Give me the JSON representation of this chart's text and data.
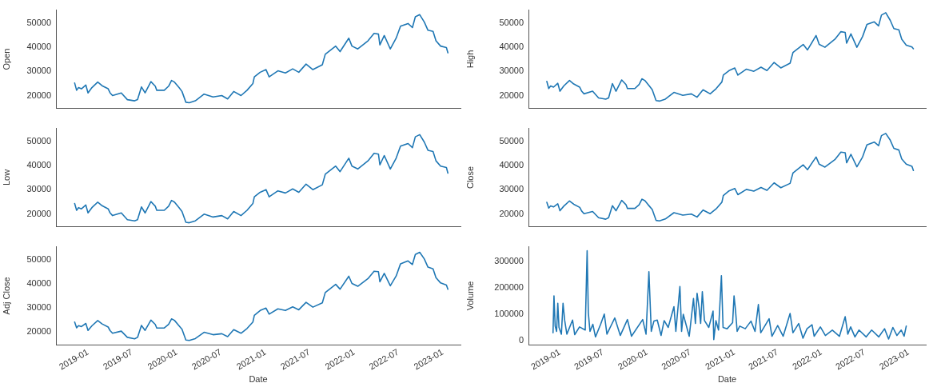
{
  "chart_data": [
    {
      "type": "line",
      "ylabel": "Open",
      "color": "#1f77b4",
      "grid": false,
      "legend": false,
      "tick_labels": "y",
      "xlim": [
        "2018-08-22",
        "2023-03-15"
      ],
      "xticks": [
        "2019-01",
        "2019-07",
        "2020-01",
        "2020-07",
        "2021-01",
        "2021-07",
        "2022-01",
        "2022-07",
        "2023-01"
      ],
      "ylim": [
        14700,
        55600
      ],
      "yticks": [
        20000,
        30000,
        40000,
        50000
      ],
      "x": [
        "2018-11-07",
        "2018-11-15",
        "2018-11-23",
        "2018-12-05",
        "2018-12-23",
        "2019-01-01",
        "2019-01-17",
        "2019-02-10",
        "2019-02-28",
        "2019-03-25",
        "2019-04-02",
        "2019-04-12",
        "2019-05-18",
        "2019-06-12",
        "2019-07-12",
        "2019-07-24",
        "2019-08-09",
        "2019-08-24",
        "2019-09-17",
        "2019-10-05",
        "2019-10-11",
        "2019-11-11",
        "2019-11-29",
        "2019-12-11",
        "2019-12-23",
        "2020-01-11",
        "2020-01-23",
        "2020-02-08",
        "2020-02-22",
        "2020-03-18",
        "2020-04-23",
        "2020-05-30",
        "2020-07-05",
        "2020-07-29",
        "2020-08-23",
        "2020-09-22",
        "2020-10-17",
        "2020-11-10",
        "2020-11-16",
        "2020-12-10",
        "2021-01-03",
        "2021-01-16",
        "2021-02-21",
        "2021-03-24",
        "2021-04-23",
        "2021-05-18",
        "2021-06-17",
        "2021-07-15",
        "2021-08-23",
        "2021-09-04",
        "2021-10-17",
        "2021-11-04",
        "2021-12-10",
        "2021-12-23",
        "2022-01-16",
        "2022-02-27",
        "2022-03-24",
        "2022-04-11",
        "2022-04-17",
        "2022-05-05",
        "2022-05-30",
        "2022-06-23",
        "2022-07-11",
        "2022-08-11",
        "2022-08-29",
        "2022-09-10",
        "2022-09-28",
        "2022-10-17",
        "2022-11-01",
        "2022-11-22",
        "2022-12-04",
        "2022-12-23",
        "2023-01-16",
        "2023-01-22"
      ],
      "values": [
        25200,
        22200,
        23300,
        22800,
        24400,
        21100,
        23300,
        25600,
        24100,
        22800,
        21100,
        20000,
        21100,
        18300,
        17800,
        18300,
        23600,
        21100,
        25800,
        23900,
        22200,
        22200,
        23900,
        26300,
        25600,
        23300,
        21700,
        17200,
        17000,
        17800,
        20600,
        19400,
        20000,
        18600,
        21700,
        20000,
        22200,
        25000,
        27800,
        29700,
        30800,
        27800,
        30300,
        29400,
        31100,
        29700,
        33100,
        30800,
        32800,
        37200,
        40600,
        38300,
        43900,
        40600,
        39400,
        42800,
        45900,
        45600,
        41100,
        45000,
        39400,
        43900,
        48900,
        50000,
        48300,
        52800,
        53700,
        50600,
        47200,
        46700,
        42800,
        40600,
        40000,
        37800
      ]
    },
    {
      "type": "line",
      "ylabel": "High",
      "color": "#1f77b4",
      "grid": false,
      "legend": false,
      "tick_labels": "y",
      "xlim": [
        "2018-08-22",
        "2023-03-15"
      ],
      "xticks": [
        "2019-01",
        "2019-07",
        "2020-01",
        "2020-07",
        "2021-01",
        "2021-07",
        "2022-01",
        "2022-07",
        "2023-01"
      ],
      "ylim": [
        14700,
        55600
      ],
      "yticks": [
        20000,
        30000,
        40000,
        50000
      ],
      "x": [
        "2018-11-07",
        "2018-11-15",
        "2018-11-23",
        "2018-12-05",
        "2018-12-23",
        "2019-01-01",
        "2019-01-17",
        "2019-02-10",
        "2019-02-28",
        "2019-03-25",
        "2019-04-02",
        "2019-04-12",
        "2019-05-18",
        "2019-06-12",
        "2019-07-12",
        "2019-07-24",
        "2019-08-09",
        "2019-08-24",
        "2019-09-17",
        "2019-10-05",
        "2019-10-11",
        "2019-11-11",
        "2019-11-29",
        "2019-12-11",
        "2019-12-23",
        "2020-01-11",
        "2020-01-23",
        "2020-02-08",
        "2020-02-22",
        "2020-03-18",
        "2020-04-23",
        "2020-05-30",
        "2020-07-05",
        "2020-07-29",
        "2020-08-23",
        "2020-09-22",
        "2020-10-17",
        "2020-11-10",
        "2020-11-16",
        "2020-12-10",
        "2021-01-03",
        "2021-01-16",
        "2021-02-21",
        "2021-03-24",
        "2021-04-23",
        "2021-05-18",
        "2021-06-17",
        "2021-07-15",
        "2021-08-23",
        "2021-09-04",
        "2021-10-17",
        "2021-11-04",
        "2021-12-10",
        "2021-12-23",
        "2022-01-16",
        "2022-02-27",
        "2022-03-24",
        "2022-04-11",
        "2022-04-17",
        "2022-05-05",
        "2022-05-30",
        "2022-06-23",
        "2022-07-11",
        "2022-08-11",
        "2022-08-29",
        "2022-09-10",
        "2022-09-28",
        "2022-10-17",
        "2022-11-01",
        "2022-11-22",
        "2022-12-04",
        "2022-12-23",
        "2023-01-16",
        "2023-01-22"
      ],
      "values": [
        25900,
        22900,
        24000,
        23500,
        25100,
        21800,
        24000,
        26300,
        24800,
        23500,
        21800,
        20700,
        21800,
        19000,
        18500,
        19000,
        25000,
        21800,
        26500,
        24600,
        22900,
        22900,
        24600,
        27000,
        26300,
        24000,
        22400,
        17900,
        17700,
        18500,
        21300,
        20100,
        20700,
        19300,
        22400,
        20700,
        22900,
        25700,
        28500,
        30400,
        31500,
        28500,
        31000,
        30100,
        31800,
        30400,
        33800,
        31500,
        33500,
        37900,
        41300,
        39000,
        45000,
        41300,
        40100,
        43500,
        46600,
        46300,
        41800,
        45700,
        40100,
        44600,
        49600,
        50700,
        49000,
        53500,
        54500,
        51300,
        47900,
        47400,
        43500,
        41000,
        40200,
        39500
      ]
    },
    {
      "type": "line",
      "ylabel": "Low",
      "color": "#1f77b4",
      "grid": false,
      "legend": false,
      "tick_labels": "y",
      "xlim": [
        "2018-08-22",
        "2023-03-15"
      ],
      "xticks": [
        "2019-01",
        "2019-07",
        "2020-01",
        "2020-07",
        "2021-01",
        "2021-07",
        "2022-01",
        "2022-07",
        "2023-01"
      ],
      "ylim": [
        14700,
        55600
      ],
      "yticks": [
        20000,
        30000,
        40000,
        50000
      ],
      "x": [
        "2018-11-07",
        "2018-11-15",
        "2018-11-23",
        "2018-12-05",
        "2018-12-23",
        "2019-01-01",
        "2019-01-17",
        "2019-02-10",
        "2019-02-28",
        "2019-03-25",
        "2019-04-02",
        "2019-04-12",
        "2019-05-18",
        "2019-06-12",
        "2019-07-12",
        "2019-07-24",
        "2019-08-09",
        "2019-08-24",
        "2019-09-17",
        "2019-10-05",
        "2019-10-11",
        "2019-11-11",
        "2019-11-29",
        "2019-12-11",
        "2019-12-23",
        "2020-01-11",
        "2020-01-23",
        "2020-02-08",
        "2020-02-22",
        "2020-03-18",
        "2020-04-23",
        "2020-05-30",
        "2020-07-05",
        "2020-07-29",
        "2020-08-23",
        "2020-09-22",
        "2020-10-17",
        "2020-11-10",
        "2020-11-16",
        "2020-12-10",
        "2021-01-03",
        "2021-01-16",
        "2021-02-21",
        "2021-03-24",
        "2021-04-23",
        "2021-05-18",
        "2021-06-17",
        "2021-07-15",
        "2021-08-23",
        "2021-09-04",
        "2021-10-17",
        "2021-11-04",
        "2021-12-10",
        "2021-12-23",
        "2022-01-16",
        "2022-02-27",
        "2022-03-24",
        "2022-04-11",
        "2022-04-17",
        "2022-05-05",
        "2022-05-30",
        "2022-06-23",
        "2022-07-11",
        "2022-08-11",
        "2022-08-29",
        "2022-09-10",
        "2022-09-28",
        "2022-10-17",
        "2022-11-01",
        "2022-11-22",
        "2022-12-04",
        "2022-12-23",
        "2023-01-16",
        "2023-01-22"
      ],
      "values": [
        24300,
        21500,
        22600,
        22100,
        23700,
        20400,
        22600,
        24900,
        23400,
        22100,
        20400,
        19300,
        20400,
        17600,
        17100,
        17600,
        22900,
        20400,
        25100,
        23200,
        21500,
        21500,
        23200,
        25600,
        24900,
        22600,
        21000,
        16500,
        16300,
        17100,
        19900,
        18700,
        19300,
        17900,
        21000,
        19300,
        21500,
        24300,
        27100,
        29000,
        30100,
        27100,
        29600,
        28700,
        30400,
        29000,
        32400,
        30100,
        32100,
        36500,
        39900,
        37600,
        43200,
        39900,
        38700,
        42100,
        45200,
        44900,
        40400,
        44300,
        38700,
        43200,
        48200,
        49300,
        47600,
        52100,
        53000,
        49900,
        46500,
        46000,
        42100,
        39900,
        39300,
        37000
      ]
    },
    {
      "type": "line",
      "ylabel": "Close",
      "color": "#1f77b4",
      "grid": false,
      "legend": false,
      "tick_labels": "y",
      "xlim": [
        "2018-08-22",
        "2023-03-15"
      ],
      "xticks": [
        "2019-01",
        "2019-07",
        "2020-01",
        "2020-07",
        "2021-01",
        "2021-07",
        "2022-01",
        "2022-07",
        "2023-01"
      ],
      "ylim": [
        14700,
        55600
      ],
      "yticks": [
        20000,
        30000,
        40000,
        50000
      ],
      "x": [
        "2018-11-07",
        "2018-11-15",
        "2018-11-23",
        "2018-12-05",
        "2018-12-23",
        "2019-01-01",
        "2019-01-17",
        "2019-02-10",
        "2019-02-28",
        "2019-03-25",
        "2019-04-02",
        "2019-04-12",
        "2019-05-18",
        "2019-06-12",
        "2019-07-12",
        "2019-07-24",
        "2019-08-09",
        "2019-08-24",
        "2019-09-17",
        "2019-10-05",
        "2019-10-11",
        "2019-11-11",
        "2019-11-29",
        "2019-12-11",
        "2019-12-23",
        "2020-01-11",
        "2020-01-23",
        "2020-02-08",
        "2020-02-22",
        "2020-03-18",
        "2020-04-23",
        "2020-05-30",
        "2020-07-05",
        "2020-07-29",
        "2020-08-23",
        "2020-09-22",
        "2020-10-17",
        "2020-11-10",
        "2020-11-16",
        "2020-12-10",
        "2021-01-03",
        "2021-01-16",
        "2021-02-21",
        "2021-03-24",
        "2021-04-23",
        "2021-05-18",
        "2021-06-17",
        "2021-07-15",
        "2021-08-23",
        "2021-09-04",
        "2021-10-17",
        "2021-11-04",
        "2021-12-10",
        "2021-12-23",
        "2022-01-16",
        "2022-02-27",
        "2022-03-24",
        "2022-04-11",
        "2022-04-17",
        "2022-05-05",
        "2022-05-30",
        "2022-06-23",
        "2022-07-11",
        "2022-08-11",
        "2022-08-29",
        "2022-09-10",
        "2022-09-28",
        "2022-10-17",
        "2022-11-01",
        "2022-11-22",
        "2022-12-04",
        "2022-12-23",
        "2023-01-16",
        "2023-01-22"
      ],
      "values": [
        24800,
        22400,
        23300,
        22900,
        24200,
        21300,
        23200,
        25400,
        24000,
        22700,
        21200,
        20100,
        21000,
        18400,
        17800,
        18400,
        23400,
        21300,
        25600,
        23800,
        22300,
        22300,
        23800,
        26100,
        25500,
        23200,
        21800,
        17300,
        17100,
        17900,
        20500,
        19500,
        19900,
        18700,
        21600,
        20100,
        22100,
        24800,
        27600,
        29600,
        30600,
        28000,
        30200,
        29500,
        31000,
        29800,
        32900,
        30900,
        32700,
        37000,
        40400,
        38400,
        43700,
        40700,
        39500,
        42600,
        45700,
        45500,
        41300,
        44800,
        39600,
        43700,
        48700,
        49900,
        48400,
        52600,
        53500,
        50700,
        47300,
        46600,
        42900,
        40700,
        39800,
        38100
      ]
    },
    {
      "type": "line",
      "ylabel": "Adj Close",
      "xlabel": "Date",
      "color": "#1f77b4",
      "grid": false,
      "legend": false,
      "xlim": [
        "2018-08-22",
        "2023-03-15"
      ],
      "xticks": [
        "2019-01",
        "2019-07",
        "2020-01",
        "2020-07",
        "2021-01",
        "2021-07",
        "2022-01",
        "2022-07",
        "2023-01"
      ],
      "ylim": [
        14700,
        55600
      ],
      "yticks": [
        20000,
        30000,
        40000,
        50000
      ],
      "x": [
        "2018-11-07",
        "2018-11-15",
        "2018-11-23",
        "2018-12-05",
        "2018-12-23",
        "2019-01-01",
        "2019-01-17",
        "2019-02-10",
        "2019-02-28",
        "2019-03-25",
        "2019-04-02",
        "2019-04-12",
        "2019-05-18",
        "2019-06-12",
        "2019-07-12",
        "2019-07-24",
        "2019-08-09",
        "2019-08-24",
        "2019-09-17",
        "2019-10-05",
        "2019-10-11",
        "2019-11-11",
        "2019-11-29",
        "2019-12-11",
        "2019-12-23",
        "2020-01-11",
        "2020-01-23",
        "2020-02-08",
        "2020-02-22",
        "2020-03-18",
        "2020-04-23",
        "2020-05-30",
        "2020-07-05",
        "2020-07-29",
        "2020-08-23",
        "2020-09-22",
        "2020-10-17",
        "2020-11-10",
        "2020-11-16",
        "2020-12-10",
        "2021-01-03",
        "2021-01-16",
        "2021-02-21",
        "2021-03-24",
        "2021-04-23",
        "2021-05-18",
        "2021-06-17",
        "2021-07-15",
        "2021-08-23",
        "2021-09-04",
        "2021-10-17",
        "2021-11-04",
        "2021-12-10",
        "2021-12-23",
        "2022-01-16",
        "2022-02-27",
        "2022-03-24",
        "2022-04-11",
        "2022-04-17",
        "2022-05-05",
        "2022-05-30",
        "2022-06-23",
        "2022-07-11",
        "2022-08-11",
        "2022-08-29",
        "2022-09-10",
        "2022-09-28",
        "2022-10-17",
        "2022-11-01",
        "2022-11-22",
        "2022-12-04",
        "2022-12-23",
        "2023-01-16",
        "2023-01-22"
      ],
      "values": [
        24200,
        21800,
        22700,
        22300,
        23600,
        20700,
        22600,
        24800,
        23400,
        22100,
        20600,
        19500,
        20400,
        17800,
        17200,
        17800,
        22800,
        20700,
        25000,
        23200,
        21700,
        21700,
        23200,
        25500,
        24900,
        22600,
        21200,
        16700,
        16500,
        17300,
        19900,
        18900,
        19300,
        18100,
        21000,
        19500,
        21500,
        24200,
        27000,
        29000,
        30000,
        27500,
        29700,
        29000,
        30500,
        29300,
        32400,
        30400,
        32200,
        36500,
        39900,
        37900,
        43300,
        40300,
        39100,
        42300,
        45400,
        45200,
        41000,
        44500,
        39300,
        43400,
        48500,
        49700,
        48200,
        52400,
        53300,
        50500,
        47100,
        46400,
        42700,
        40500,
        39600,
        37900
      ]
    },
    {
      "type": "line",
      "ylabel": "Volume",
      "xlabel": "Date",
      "color": "#1f77b4",
      "grid": false,
      "legend": false,
      "xlim": [
        "2018-08-22",
        "2023-03-15"
      ],
      "xticks": [
        "2019-01",
        "2019-07",
        "2020-01",
        "2020-07",
        "2021-01",
        "2021-07",
        "2022-01",
        "2022-07",
        "2023-01"
      ],
      "ylim": [
        -17000,
        356000
      ],
      "yticks": [
        0,
        100000,
        200000,
        300000
      ],
      "x": [
        "2018-12-03",
        "2018-12-07",
        "2018-12-12",
        "2018-12-18",
        "2018-12-23",
        "2018-12-28",
        "2019-01-07",
        "2019-01-14",
        "2019-01-21",
        "2019-01-30",
        "2019-02-23",
        "2019-03-04",
        "2019-03-24",
        "2019-04-17",
        "2019-04-25",
        "2019-04-30",
        "2019-05-07",
        "2019-05-19",
        "2019-05-30",
        "2019-06-21",
        "2019-07-06",
        "2019-07-17",
        "2019-08-19",
        "2019-09-11",
        "2019-10-11",
        "2019-10-28",
        "2019-12-14",
        "2019-12-28",
        "2020-01-09",
        "2020-01-19",
        "2020-01-30",
        "2020-02-13",
        "2020-02-29",
        "2020-03-13",
        "2020-03-30",
        "2020-04-23",
        "2020-05-01",
        "2020-05-18",
        "2020-05-25",
        "2020-06-01",
        "2020-06-26",
        "2020-07-14",
        "2020-07-22",
        "2020-07-29",
        "2020-08-06",
        "2020-08-13",
        "2020-08-20",
        "2020-08-29",
        "2020-09-16",
        "2020-10-04",
        "2020-10-07",
        "2020-10-16",
        "2020-10-27",
        "2020-11-08",
        "2020-11-15",
        "2020-12-02",
        "2020-12-25",
        "2020-12-31",
        "2021-01-06",
        "2021-01-13",
        "2021-01-24",
        "2021-02-16",
        "2021-03-12",
        "2021-03-29",
        "2021-04-12",
        "2021-04-22",
        "2021-05-27",
        "2021-06-08",
        "2021-07-02",
        "2021-07-25",
        "2021-08-23",
        "2021-09-04",
        "2021-09-28",
        "2021-10-16",
        "2021-11-02",
        "2021-11-23",
        "2021-12-02",
        "2021-12-28",
        "2022-01-18",
        "2022-02-16",
        "2022-03-18",
        "2022-04-11",
        "2022-04-22",
        "2022-05-04",
        "2022-05-22",
        "2022-06-08",
        "2022-07-08",
        "2022-07-31",
        "2022-08-30",
        "2022-09-23",
        "2022-10-10",
        "2022-10-28",
        "2022-11-14",
        "2022-12-02",
        "2022-12-14",
        "2022-12-23"
      ],
      "values": [
        28700,
        169000,
        54000,
        34000,
        141000,
        49000,
        23500,
        141000,
        75000,
        23500,
        77000,
        21500,
        51000,
        39000,
        341000,
        105000,
        34000,
        61000,
        13000,
        62000,
        100000,
        23500,
        85000,
        18400,
        79000,
        15400,
        79000,
        23500,
        261000,
        34000,
        73000,
        77000,
        18400,
        75000,
        49000,
        128000,
        34000,
        205000,
        34000,
        99000,
        15400,
        159000,
        64000,
        179000,
        128000,
        64000,
        185000,
        75000,
        49000,
        111000,
        3000,
        75000,
        39000,
        246000,
        49000,
        44000,
        67000,
        169000,
        116000,
        34000,
        54000,
        44000,
        73000,
        34000,
        136000,
        28700,
        82000,
        15400,
        56000,
        15400,
        102000,
        28700,
        64000,
        8200,
        44000,
        59000,
        15400,
        51000,
        18400,
        39000,
        15400,
        90000,
        23500,
        51000,
        13000,
        39000,
        13000,
        39000,
        13000,
        44000,
        5000,
        49000,
        18400,
        39000,
        15400,
        54000
      ]
    }
  ]
}
